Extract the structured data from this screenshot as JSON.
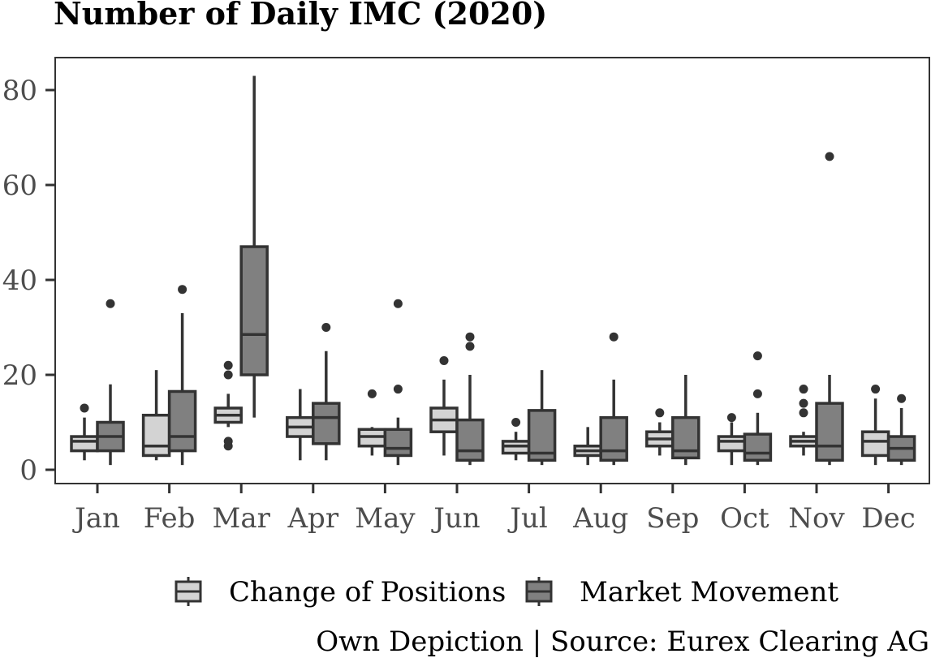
{
  "chart_data": {
    "type": "boxplot",
    "title": "Number of Daily IMC (2020)",
    "caption": "Own Depiction | Source: Eurex Clearing AG",
    "xlabel": "",
    "ylabel": "",
    "ylim": [
      -3,
      87
    ],
    "yticks": [
      0,
      20,
      40,
      60,
      80
    ],
    "grid": false,
    "legend_position": "bottom",
    "categories": [
      "Jan",
      "Feb",
      "Mar",
      "Apr",
      "May",
      "Jun",
      "Jul",
      "Aug",
      "Sep",
      "Oct",
      "Nov",
      "Dec"
    ],
    "series": [
      {
        "name": "Change of Positions",
        "color": "#d3d3d3",
        "boxes": [
          {
            "min": 2,
            "q1": 4,
            "median": 6,
            "q3": 7,
            "max": 11,
            "outliers": [
              13
            ]
          },
          {
            "min": 2,
            "q1": 3,
            "median": 5,
            "q3": 11.5,
            "max": 21,
            "outliers": []
          },
          {
            "min": 9,
            "q1": 10,
            "median": 11.5,
            "q3": 13,
            "max": 16,
            "outliers": [
              5,
              6,
              20,
              22
            ]
          },
          {
            "min": 2,
            "q1": 7,
            "median": 9,
            "q3": 11,
            "max": 17,
            "outliers": []
          },
          {
            "min": 3,
            "q1": 5,
            "median": 7,
            "q3": 8.5,
            "max": 9,
            "outliers": [
              16
            ]
          },
          {
            "min": 3,
            "q1": 8,
            "median": 10.5,
            "q3": 13,
            "max": 19,
            "outliers": [
              23
            ]
          },
          {
            "min": 2,
            "q1": 3.5,
            "median": 5,
            "q3": 6,
            "max": 8,
            "outliers": [
              10
            ]
          },
          {
            "min": 1,
            "q1": 3,
            "median": 4,
            "q3": 5,
            "max": 9,
            "outliers": []
          },
          {
            "min": 3,
            "q1": 5,
            "median": 6.5,
            "q3": 8,
            "max": 10,
            "outliers": [
              12
            ]
          },
          {
            "min": 1,
            "q1": 4,
            "median": 6,
            "q3": 7,
            "max": 10,
            "outliers": [
              11
            ]
          },
          {
            "min": 3,
            "q1": 5,
            "median": 6,
            "q3": 7,
            "max": 8,
            "outliers": [
              12,
              14,
              17
            ]
          },
          {
            "min": 1,
            "q1": 3,
            "median": 6,
            "q3": 8,
            "max": 15,
            "outliers": [
              17
            ]
          }
        ]
      },
      {
        "name": "Market Movement",
        "color": "#808080",
        "boxes": [
          {
            "min": 1,
            "q1": 4,
            "median": 7,
            "q3": 10,
            "max": 18,
            "outliers": [
              35
            ]
          },
          {
            "min": 1,
            "q1": 4,
            "median": 7,
            "q3": 16.5,
            "max": 33,
            "outliers": [
              38
            ]
          },
          {
            "min": 11,
            "q1": 20,
            "median": 28.5,
            "q3": 47,
            "max": 83,
            "outliers": []
          },
          {
            "min": 2,
            "q1": 5.5,
            "median": 11,
            "q3": 14,
            "max": 25,
            "outliers": [
              30
            ]
          },
          {
            "min": 1,
            "q1": 3,
            "median": 4.5,
            "q3": 8.5,
            "max": 11,
            "outliers": [
              17,
              35
            ]
          },
          {
            "min": 1,
            "q1": 2,
            "median": 4,
            "q3": 10.5,
            "max": 20,
            "outliers": [
              26,
              28
            ]
          },
          {
            "min": 1,
            "q1": 2,
            "median": 3.5,
            "q3": 12.5,
            "max": 21,
            "outliers": []
          },
          {
            "min": 1,
            "q1": 2,
            "median": 4,
            "q3": 11,
            "max": 19,
            "outliers": [
              28
            ]
          },
          {
            "min": 1,
            "q1": 2.5,
            "median": 4,
            "q3": 11,
            "max": 20,
            "outliers": []
          },
          {
            "min": 1,
            "q1": 2,
            "median": 3.5,
            "q3": 7.5,
            "max": 12,
            "outliers": [
              16,
              24
            ]
          },
          {
            "min": 1,
            "q1": 2,
            "median": 5,
            "q3": 14,
            "max": 20,
            "outliers": [
              66
            ]
          },
          {
            "min": 1,
            "q1": 2,
            "median": 4.5,
            "q3": 7,
            "max": 13,
            "outliers": [
              15
            ]
          }
        ]
      }
    ]
  }
}
